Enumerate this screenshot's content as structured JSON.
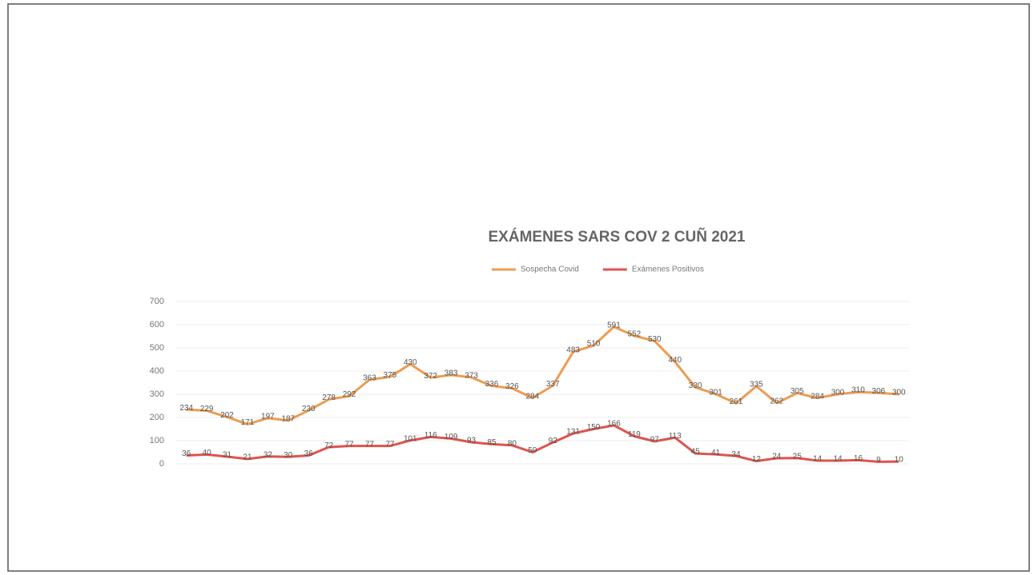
{
  "chart_data": {
    "type": "line",
    "title": "EXÁMENES SARS COV 2 CUÑ 2021",
    "categories": [
      null,
      null,
      null,
      null,
      null,
      null,
      null,
      null,
      null,
      null,
      null,
      null,
      null,
      null,
      null,
      null,
      null,
      null,
      null,
      null,
      null,
      null,
      null,
      null,
      null,
      null,
      null,
      null,
      null,
      null,
      null,
      null,
      null,
      null,
      null,
      null
    ],
    "series": [
      {
        "name": "Sospecha Covid",
        "color": "#ed9c52",
        "values": [
          234,
          229,
          202,
          171,
          197,
          187,
          230,
          278,
          292,
          363,
          375,
          430,
          372,
          383,
          373,
          336,
          326,
          284,
          337,
          483,
          510,
          591,
          552,
          530,
          440,
          330,
          301,
          261,
          335,
          262,
          305,
          284,
          300,
          310,
          306,
          300
        ]
      },
      {
        "name": "Exámenes Positivos",
        "color": "#e0534d",
        "values": [
          36,
          40,
          31,
          21,
          32,
          30,
          36,
          72,
          77,
          77,
          77,
          101,
          116,
          109,
          93,
          85,
          80,
          50,
          92,
          131,
          150,
          166,
          119,
          97,
          113,
          45,
          41,
          34,
          12,
          24,
          25,
          14,
          14,
          16,
          9,
          10
        ]
      }
    ],
    "ylim": [
      0,
      700
    ],
    "yticks": [
      0,
      100,
      200,
      300,
      400,
      500,
      600,
      700
    ],
    "grid": true,
    "legend": "top"
  }
}
